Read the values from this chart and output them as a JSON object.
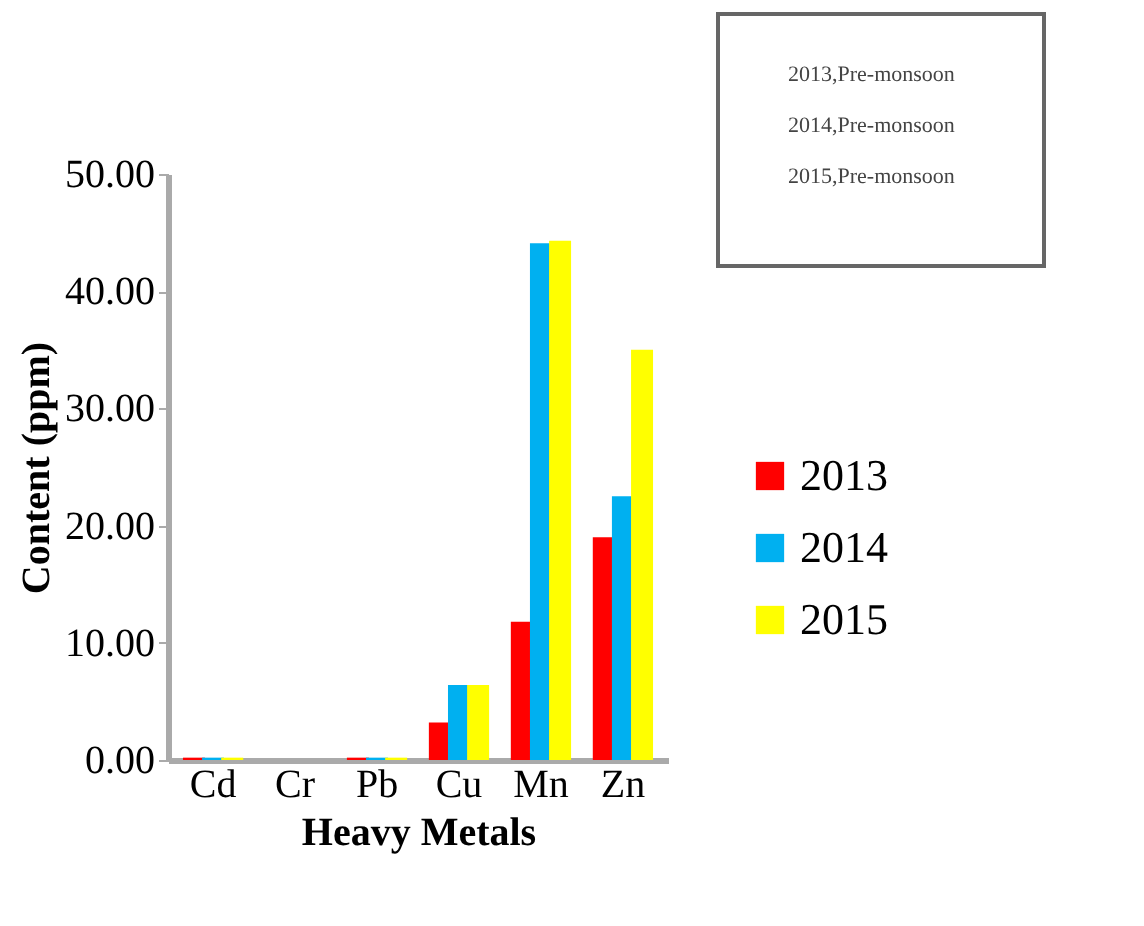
{
  "chart_data": {
    "type": "bar",
    "xlabel": "Heavy Metals",
    "ylabel": "Content (ppm)",
    "categories": [
      "Cd",
      "Cr",
      "Pb",
      "Cu",
      "Mn",
      "Zn"
    ],
    "series": [
      {
        "name": "2013",
        "color": "#ff0000",
        "values": [
          0.2,
          0.0,
          0.2,
          3.2,
          11.8,
          19.0
        ]
      },
      {
        "name": "2014",
        "color": "#00b0f0",
        "values": [
          0.2,
          0.0,
          0.2,
          6.4,
          44.1,
          22.5
        ]
      },
      {
        "name": "2015",
        "color": "#ffff00",
        "values": [
          0.2,
          0.0,
          0.2,
          6.4,
          44.3,
          35.0
        ]
      }
    ],
    "ylim": [
      0,
      50
    ],
    "yticks": [
      {
        "value": 0,
        "label": "0.00"
      },
      {
        "value": 10,
        "label": "10.00"
      },
      {
        "value": 20,
        "label": "20.00"
      },
      {
        "value": 30,
        "label": "30.00"
      },
      {
        "value": 40,
        "label": "40.00"
      },
      {
        "value": 50,
        "label": "50.00"
      }
    ],
    "legend": "right",
    "grid": false,
    "annotations": [
      "2013,Pre-monsoon",
      "2014,Pre-monsoon",
      "2015,Pre-monsoon"
    ]
  }
}
